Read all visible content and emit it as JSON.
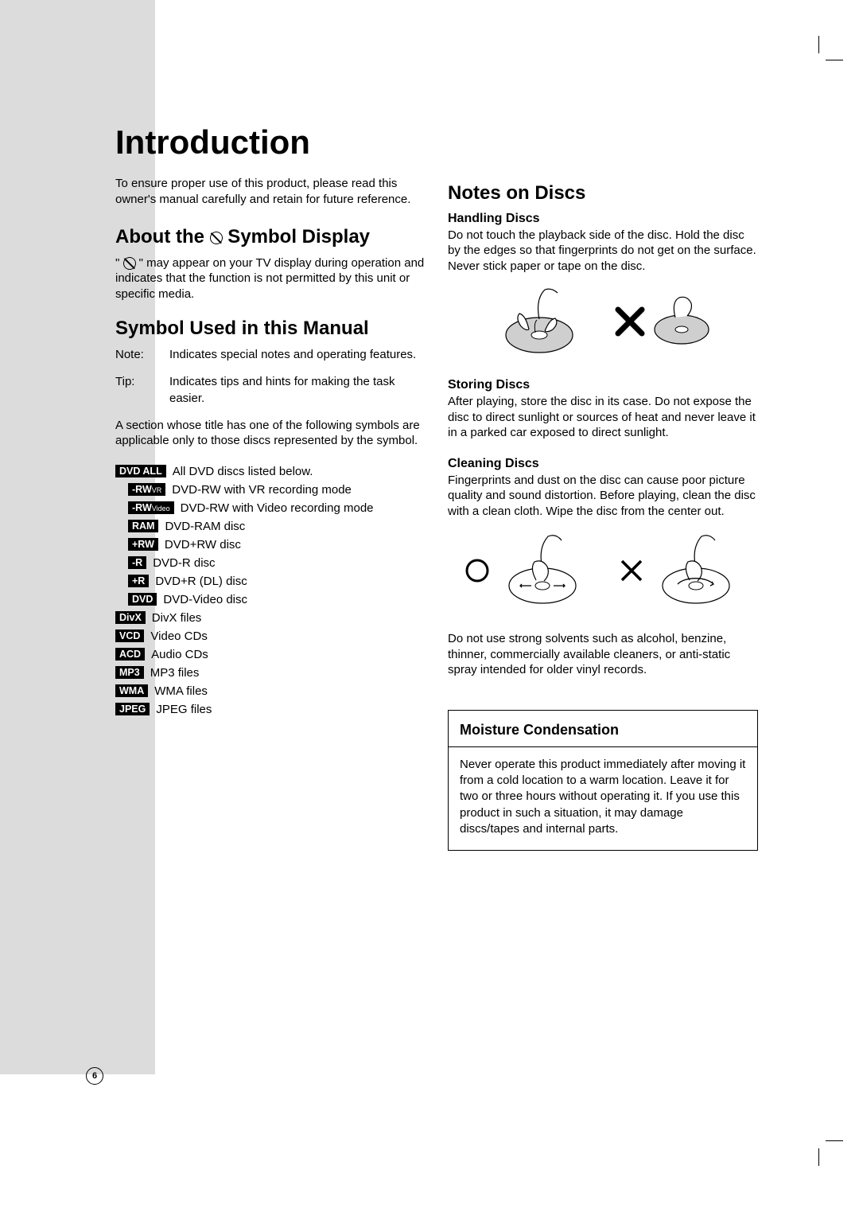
{
  "page": {
    "title": "Introduction",
    "number": "6"
  },
  "intro": "To ensure proper use of this product, please read this owner's manual carefully and retain for future reference.",
  "about_symbol": {
    "heading_pre": "About the ",
    "heading_post": " Symbol Display",
    "text_pre": "\" ",
    "text_post": " \" may appear on your TV display during operation and indicates that the function is not permitted by this unit or specific media."
  },
  "symbol_manual": {
    "heading": "Symbol Used in this Manual",
    "note_term": "Note:",
    "note_desc": "Indicates special notes and operating features.",
    "tip_term": "Tip:",
    "tip_desc": "Indicates tips and hints for making the task easier.",
    "section_intro": "A section whose title has one of the following symbols are applicable only to those discs represented by the symbol.",
    "symbols": [
      {
        "badge": "DVD ALL",
        "desc": "All DVD discs listed below.",
        "indent": 1
      },
      {
        "badge": "-RWVR",
        "sub": "VR",
        "desc": "DVD-RW with VR recording mode",
        "indent": 2
      },
      {
        "badge": "-RWVideo",
        "sub": "Video",
        "desc": "DVD-RW with Video recording mode",
        "indent": 2
      },
      {
        "badge": "RAM",
        "desc": "DVD-RAM disc",
        "indent": 2
      },
      {
        "badge": "+RW",
        "desc": "DVD+RW disc",
        "indent": 2
      },
      {
        "badge": "-R",
        "desc": "DVD-R disc",
        "indent": 2
      },
      {
        "badge": "+R",
        "desc": "DVD+R (DL) disc",
        "indent": 2
      },
      {
        "badge": "DVD",
        "desc": "DVD-Video disc",
        "indent": 2
      },
      {
        "badge": "DivX",
        "desc": "DivX files",
        "indent": 1
      },
      {
        "badge": "VCD",
        "desc": "Video CDs",
        "indent": 1
      },
      {
        "badge": "ACD",
        "desc": "Audio CDs",
        "indent": 1
      },
      {
        "badge": "MP3",
        "desc": "MP3 files",
        "indent": 1
      },
      {
        "badge": "WMA",
        "desc": "WMA files",
        "indent": 1
      },
      {
        "badge": "JPEG",
        "desc": "JPEG files",
        "indent": 1
      }
    ]
  },
  "notes_discs": {
    "heading": "Notes on Discs",
    "handling_h": "Handling Discs",
    "handling_t": "Do not touch the playback side of the disc. Hold the disc by the edges so that fingerprints do not get on the surface. Never stick paper or tape on the disc.",
    "storing_h": "Storing Discs",
    "storing_t": "After playing, store the disc in its case. Do not expose the disc to direct sunlight or sources of heat and never leave it in a parked car exposed to direct sunlight.",
    "cleaning_h": "Cleaning Discs",
    "cleaning_t": "Fingerprints and dust on the disc can cause poor picture quality and sound distortion. Before playing, clean the disc with a clean cloth. Wipe the disc from the center out.",
    "solvents_t": "Do not use strong solvents such as alcohol, benzine, thinner, commercially available cleaners, or anti-static spray intended for older vinyl records."
  },
  "moisture": {
    "heading": "Moisture Condensation",
    "text": "Never operate this product immediately after moving it from a cold location to a warm location. Leave it for two or three hours without operating it. If you use this product in such a situation, it may damage discs/tapes and internal parts."
  },
  "colors": {
    "sidebar": "#dcdcdc",
    "text": "#000000",
    "bg": "#ffffff"
  }
}
